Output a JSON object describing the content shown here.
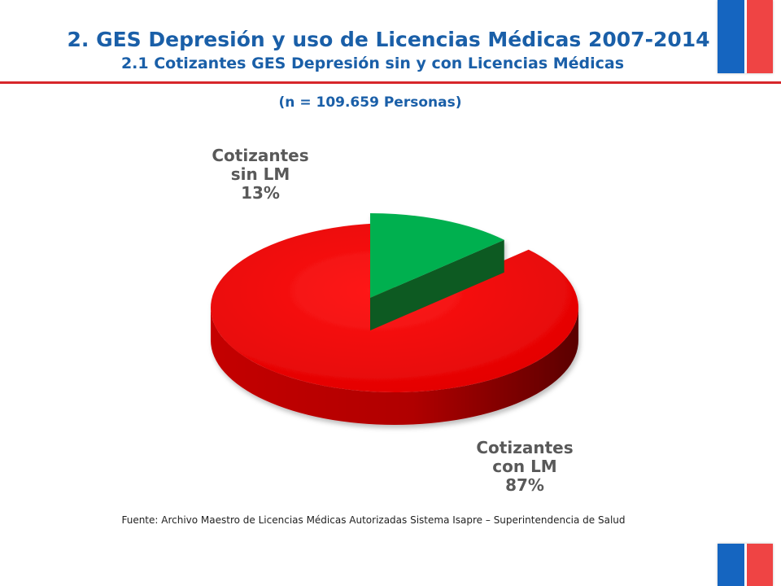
{
  "title": "2. GES Depresión y uso de Licencias Médicas 2007-2014",
  "subtitle": "2.1 Cotizantes GES Depresión sin y con Licencias Médicas",
  "n_label": "(n = 109.659 Personas)",
  "source": "Fuente: Archivo Maestro de Licencias Médicas Autorizadas Sistema Isapre – Superintendencia de Salud",
  "colors": {
    "title": "#1a5fa8",
    "rule": "#d7262a",
    "flag_blue": "#1565c0",
    "flag_red": "#ef4444"
  },
  "chart_data": {
    "type": "pie",
    "style": "3d-exploded",
    "slices": [
      {
        "label_lines": [
          "Cotizantes",
          "sin LM",
          "13%"
        ],
        "value": 13,
        "color": "#00b050",
        "side_color": "#0b5a22"
      },
      {
        "label_lines": [
          "Cotizantes",
          "con LM",
          "87%"
        ],
        "value": 87,
        "color": "#ef0000",
        "side_color": "#9a0000"
      }
    ]
  }
}
